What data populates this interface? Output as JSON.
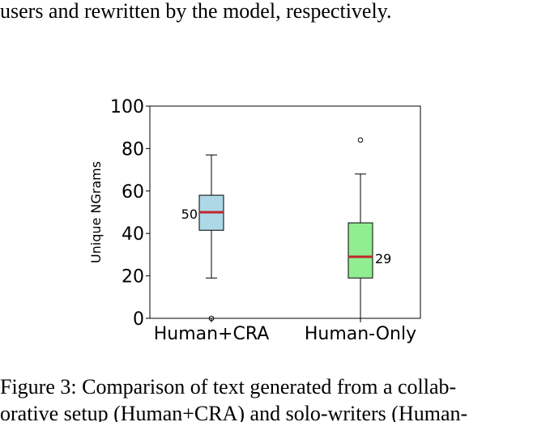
{
  "text_above": "users and rewritten by the model, respectively.",
  "figure": {
    "chart_data": {
      "type": "box",
      "ylabel": "Unique NGrams",
      "categories": [
        "Human+CRA",
        "Human-Only"
      ],
      "ylim": [
        0,
        100
      ],
      "yticks": [
        0,
        20,
        40,
        60,
        80,
        100
      ],
      "median_color": "#c0282d",
      "boxes": [
        {
          "whislo": 19,
          "q1": 41.5,
          "median": 50,
          "q3": 58,
          "whishi": 77,
          "fliers": [
            0
          ],
          "color": "#add8e6"
        },
        {
          "whislo": 0,
          "q1": 19,
          "median": 29,
          "q3": 45,
          "whishi": 68,
          "fliers": [
            84
          ],
          "color": "#90ee90"
        }
      ]
    }
  },
  "caption": [
    "Figure 3: Comparison of text generated from a collab-",
    "orative setup (Human+CRA) and solo-writers (Human-"
  ]
}
